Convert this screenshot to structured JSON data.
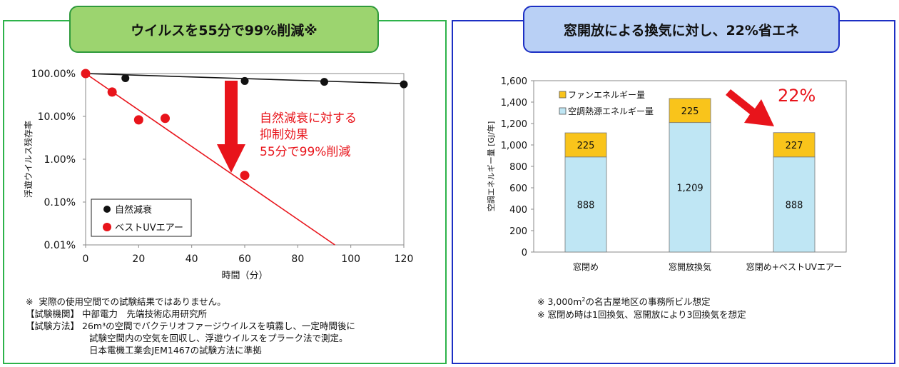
{
  "left_panel": {
    "title": "ウイルスを55分で99%削減※",
    "annotation": [
      "自然減衰に対する",
      "抑制効果",
      "55分で99%削減"
    ],
    "notes": [
      {
        "key": "※",
        "text": "実際の使用空間での試験結果ではありません。"
      },
      {
        "key": "【試験機関】",
        "text": "中部電力　先端技術応用研究所"
      },
      {
        "key": "【試験方法】",
        "lines": [
          "26m³の空間でバクテリオファージウイルスを噴霧し、一定時間後に",
          "試験空間内の空気を回収し、浮遊ウイルスをプラーク法で測定。",
          "日本電機工業会JEM1467の試験方法に準拠"
        ]
      }
    ]
  },
  "right_panel": {
    "title": "窓開放による換気に対し、22%省エネ",
    "callout": "22%",
    "notes": [
      {
        "prefix": "※ 3,000m",
        "sup": "2",
        "suffix": "の名古屋地区の事務所ビル想定"
      },
      {
        "text": "※ 窓閉め時は1回換気、窓開放により3回換気を想定"
      }
    ]
  },
  "chart_data": [
    {
      "type": "scatter",
      "xlabel": "時間（分）",
      "ylabel": "浮遊ウイルス残存率",
      "xlim": [
        0,
        120
      ],
      "xticks": [
        0,
        20,
        40,
        60,
        80,
        100,
        120
      ],
      "ylim": [
        0.01,
        100
      ],
      "yscale": "log",
      "yticks": [
        100,
        10,
        1,
        0.1,
        0.01
      ],
      "ytick_labels": [
        "100.00%",
        "10.00%",
        "1.00%",
        "0.10%",
        "0.01%"
      ],
      "grid": false,
      "legend": "bottom-left",
      "series": [
        {
          "name": "自然減衰",
          "color": "#111111",
          "x": [
            0,
            15,
            60,
            90,
            120
          ],
          "y": [
            100,
            78,
            67,
            64,
            56
          ],
          "trend": [
            [
              0,
              100
            ],
            [
              120,
              58
            ]
          ]
        },
        {
          "name": "ベストUVエアー",
          "color": "#e8141b",
          "x": [
            0,
            10,
            20,
            30,
            60
          ],
          "y": [
            100,
            37,
            8.3,
            9.0,
            0.42
          ],
          "trend": [
            [
              0,
              100
            ],
            [
              94,
              0.01
            ]
          ]
        }
      ]
    },
    {
      "type": "bar",
      "stacked": true,
      "categories": [
        "窓閉め",
        "窓開放換気",
        "窓閉め+ベストUVエアー"
      ],
      "ylabel": "空調エネルギー量 [GJ/年]",
      "ylim": [
        0,
        1600
      ],
      "yticks": [
        0,
        200,
        400,
        600,
        800,
        1000,
        1200,
        1400,
        1600
      ],
      "ytick_labels": [
        "0",
        "200",
        "400",
        "600",
        "800",
        "1,000",
        "1,200",
        "1,400",
        "1,600"
      ],
      "legend": "top-left",
      "series": [
        {
          "name": "空調熱源エネルギー量",
          "color": "#bfe6f4",
          "values": [
            888,
            1209,
            888
          ],
          "labels": [
            "888",
            "1,209",
            "888"
          ]
        },
        {
          "name": "ファンエネルギー量",
          "color": "#f9c41b",
          "values": [
            225,
            225,
            227
          ],
          "labels": [
            "225",
            "225",
            "227"
          ]
        }
      ]
    }
  ]
}
